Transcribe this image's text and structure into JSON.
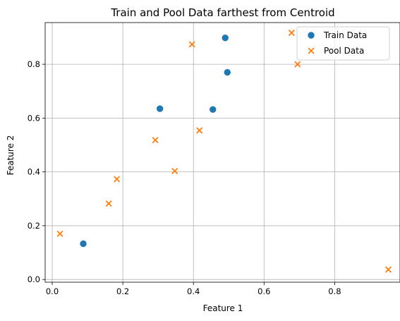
{
  "chart_data": {
    "type": "scatter",
    "title": "Train and Pool Data farthest from Centroid",
    "xlabel": "Feature 1",
    "ylabel": "Feature 2",
    "xlim": [
      -0.02,
      0.985
    ],
    "ylim": [
      -0.01,
      0.955
    ],
    "xticks": [
      0.0,
      0.2,
      0.4,
      0.6,
      0.8
    ],
    "yticks": [
      0.0,
      0.2,
      0.4,
      0.6,
      0.8
    ],
    "xtick_labels": [
      "0.0",
      "0.2",
      "0.4",
      "0.6",
      "0.8"
    ],
    "ytick_labels": [
      "0.0",
      "0.2",
      "0.4",
      "0.6",
      "0.8"
    ],
    "grid": true,
    "legend_position": "top-right",
    "series": [
      {
        "name": "Train Data",
        "marker": "circle",
        "color": "#1f77b4",
        "points": [
          {
            "x": 0.088,
            "y": 0.133
          },
          {
            "x": 0.305,
            "y": 0.635
          },
          {
            "x": 0.455,
            "y": 0.632
          },
          {
            "x": 0.49,
            "y": 0.898
          },
          {
            "x": 0.496,
            "y": 0.77
          }
        ]
      },
      {
        "name": "Pool Data",
        "marker": "x",
        "color": "#ff7f0e",
        "points": [
          {
            "x": 0.022,
            "y": 0.17
          },
          {
            "x": 0.16,
            "y": 0.282
          },
          {
            "x": 0.183,
            "y": 0.373
          },
          {
            "x": 0.292,
            "y": 0.518
          },
          {
            "x": 0.347,
            "y": 0.403
          },
          {
            "x": 0.396,
            "y": 0.874
          },
          {
            "x": 0.417,
            "y": 0.554
          },
          {
            "x": 0.678,
            "y": 0.917
          },
          {
            "x": 0.695,
            "y": 0.8
          },
          {
            "x": 0.952,
            "y": 0.037
          }
        ]
      }
    ]
  }
}
